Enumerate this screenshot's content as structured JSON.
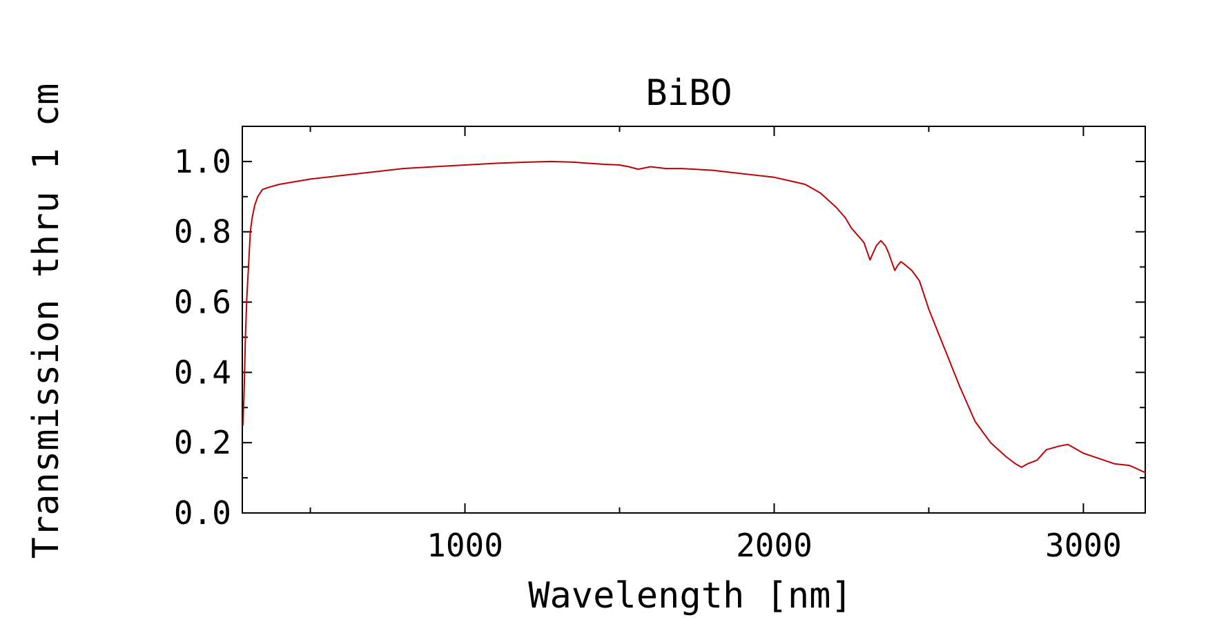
{
  "chart_data": {
    "type": "line",
    "title": "BiBO",
    "xlabel": "Wavelength [nm]",
    "ylabel": "Transmission thru 1 cm",
    "xlim": [
      280,
      3200
    ],
    "ylim": [
      0.0,
      1.1
    ],
    "x_ticks": [
      1000,
      2000,
      3000
    ],
    "x_tick_labels": [
      "1000",
      "2000",
      "3000"
    ],
    "x_minor_ticks": [
      500,
      1500,
      2500
    ],
    "y_ticks": [
      0.0,
      0.2,
      0.4,
      0.6,
      0.8,
      1.0
    ],
    "y_tick_labels": [
      "0.0",
      "0.2",
      "0.4",
      "0.6",
      "0.8",
      "1.0"
    ],
    "y_minor_ticks": [
      0.1,
      0.3,
      0.5,
      0.7,
      0.9
    ],
    "grid": false,
    "line_color": "#c00000",
    "series": [
      {
        "x": [
          282,
          286,
          290,
          295,
          300,
          306,
          312,
          320,
          330,
          345,
          360,
          400,
          500,
          600,
          700,
          800,
          900,
          1000,
          1100,
          1200,
          1280,
          1350,
          1400,
          1450,
          1500,
          1530,
          1560,
          1600,
          1650,
          1700,
          1800,
          1900,
          2000,
          2050,
          2100,
          2150,
          2200,
          2230,
          2250,
          2270,
          2290,
          2310,
          2330,
          2345,
          2360,
          2370,
          2390,
          2400,
          2410,
          2425,
          2445,
          2470,
          2500,
          2550,
          2600,
          2650,
          2700,
          2750,
          2780,
          2800,
          2820,
          2850,
          2880,
          2920,
          2950,
          2980,
          3000,
          3050,
          3100,
          3150,
          3200
        ],
        "y": [
          0.25,
          0.35,
          0.5,
          0.62,
          0.7,
          0.8,
          0.84,
          0.875,
          0.9,
          0.92,
          0.925,
          0.935,
          0.95,
          0.96,
          0.97,
          0.98,
          0.985,
          0.99,
          0.995,
          0.998,
          1.0,
          0.998,
          0.995,
          0.992,
          0.99,
          0.985,
          0.978,
          0.985,
          0.98,
          0.98,
          0.975,
          0.965,
          0.955,
          0.945,
          0.935,
          0.91,
          0.87,
          0.84,
          0.81,
          0.79,
          0.77,
          0.72,
          0.76,
          0.775,
          0.76,
          0.74,
          0.69,
          0.705,
          0.715,
          0.705,
          0.69,
          0.66,
          0.58,
          0.47,
          0.36,
          0.26,
          0.2,
          0.16,
          0.14,
          0.13,
          0.14,
          0.15,
          0.18,
          0.19,
          0.195,
          0.18,
          0.17,
          0.155,
          0.14,
          0.135,
          0.115
        ]
      }
    ]
  }
}
